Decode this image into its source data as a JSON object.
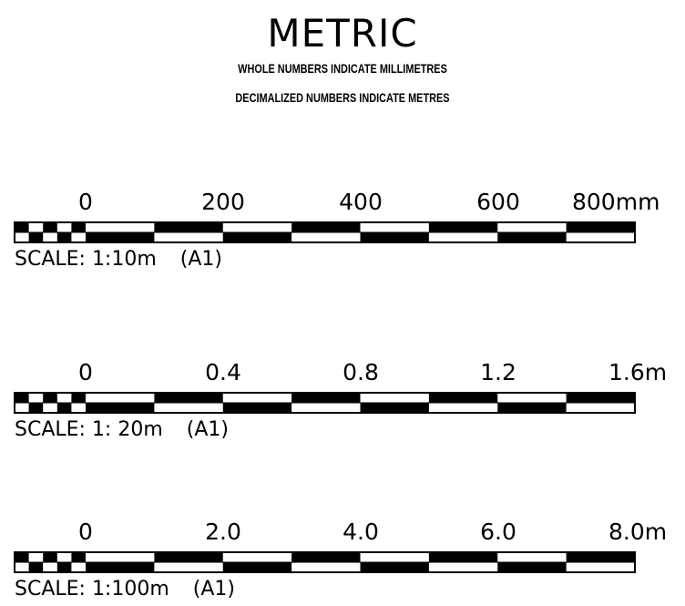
{
  "title": "METRIC",
  "subtitle_lines": [
    "WHOLE NUMBERS INDICATE MILLIMETRES",
    "DECIMALIZED NUMBERS INDICATE METRES"
  ],
  "scale_bars": [
    {
      "labels": [
        "0",
        "200",
        "400",
        "600",
        "800mm"
      ],
      "scale_text": "SCALE: 1:10m",
      "paper": "(A1)"
    },
    {
      "labels": [
        "0",
        "0.4",
        "0.8",
        "1.2",
        "1.6m"
      ],
      "scale_text": "SCALE: 1: 20m",
      "paper": "(A1)"
    },
    {
      "labels": [
        "0",
        "2.0",
        "4.0",
        "6.0",
        "8.0m"
      ],
      "scale_text": "SCALE: 1:100m",
      "paper": "(A1)"
    }
  ],
  "colors": {
    "ink": "#000000",
    "paper": "#ffffff"
  }
}
